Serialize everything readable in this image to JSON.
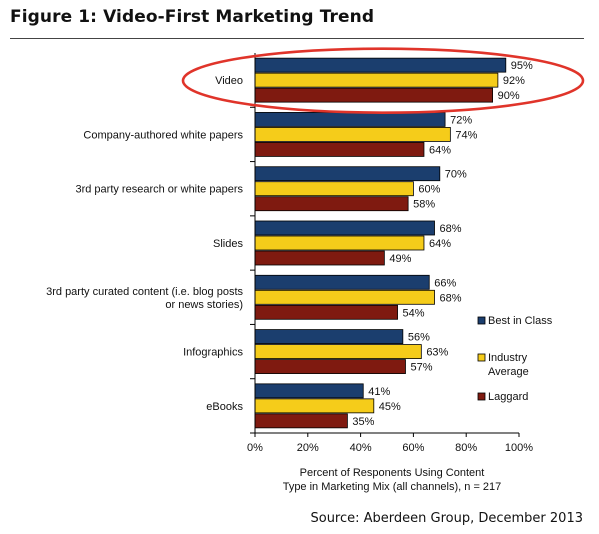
{
  "figure": {
    "title": "Figure 1: Video-First Marketing Trend",
    "source": "Source: Aberdeen Group, December 2013"
  },
  "colors": {
    "Best in Class": "#1b3e6e",
    "Industry Average": "#f5cc1a",
    "Laggard": "#7f1a10",
    "highlight": "#e0342a"
  },
  "chart_data": {
    "type": "bar",
    "orientation": "horizontal",
    "categories": [
      "Video",
      "Company-authored white papers",
      "3rd party research or white papers",
      "Slides",
      "3rd party curated content (i.e. blog posts or news stories)",
      "Infographics",
      "eBooks"
    ],
    "category_lines": [
      [
        "Video"
      ],
      [
        "Company-authored white papers"
      ],
      [
        "3rd party research or white papers"
      ],
      [
        "Slides"
      ],
      [
        "3rd party curated content (i.e. blog posts",
        "or news stories)"
      ],
      [
        "Infographics"
      ],
      [
        "eBooks"
      ]
    ],
    "series": [
      {
        "name": "Best in Class",
        "legend_lines": [
          "Best in Class"
        ],
        "values": [
          95,
          72,
          70,
          68,
          66,
          56,
          41
        ]
      },
      {
        "name": "Industry Average",
        "legend_lines": [
          "Industry",
          "Average"
        ],
        "values": [
          92,
          74,
          60,
          64,
          68,
          63,
          45
        ]
      },
      {
        "name": "Laggard",
        "legend_lines": [
          "Laggard"
        ],
        "values": [
          90,
          64,
          58,
          49,
          54,
          57,
          35
        ]
      }
    ],
    "value_format": "%",
    "xlabel": "Percent of Responents Using Content Type in Marketing Mix (all channels), n = 217",
    "xlabel_lines": [
      "Percent of Responents Using Content",
      "Type in Marketing Mix (all channels), n = 217"
    ],
    "xlim": [
      0,
      100
    ],
    "xticks": [
      0,
      20,
      40,
      60,
      80,
      100
    ],
    "xtick_labels": [
      "0%",
      "20%",
      "40%",
      "60%",
      "80%",
      "100%"
    ],
    "grid": false,
    "legend_position": "right",
    "highlighted_category": "Video"
  }
}
